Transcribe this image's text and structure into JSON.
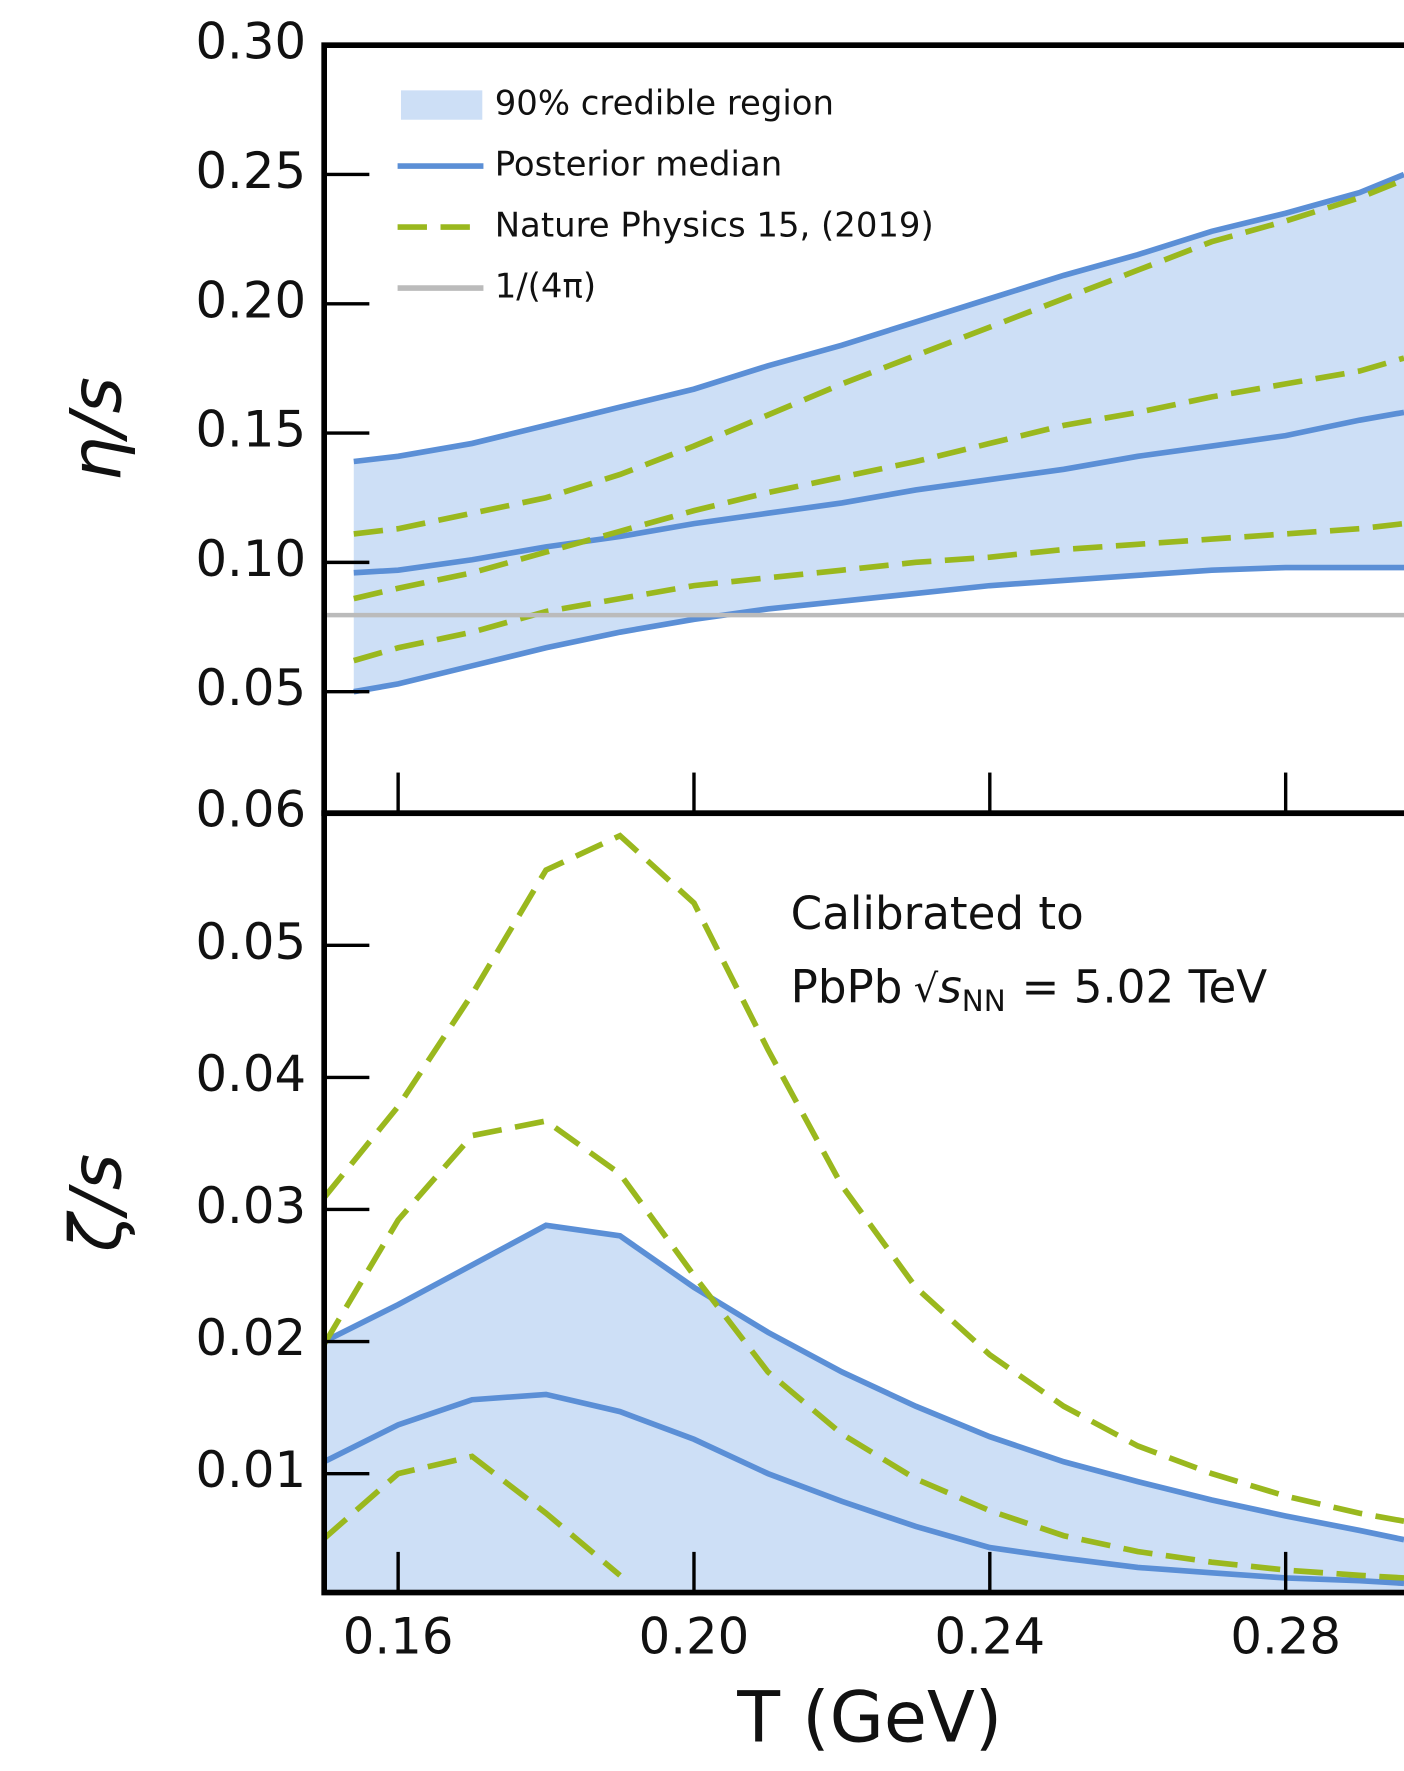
{
  "chart_data": [
    {
      "type": "line",
      "ylabel": "η/s",
      "x": [
        0.154,
        0.16,
        0.17,
        0.18,
        0.19,
        0.2,
        0.21,
        0.22,
        0.23,
        0.24,
        0.25,
        0.26,
        0.27,
        0.28,
        0.29,
        0.296
      ],
      "xlim": [
        0.15,
        0.296
      ],
      "ylim": [
        0.003,
        0.3
      ],
      "xticks": [
        0.16,
        0.2,
        0.24,
        0.28
      ],
      "xtick_labels": false,
      "yticks": [
        {
          "value": 0.3,
          "label": "0.30"
        },
        0.25,
        {
          "value": 0.2,
          "label": "0.20"
        },
        0.15,
        {
          "value": 0.1,
          "label": "0.10"
        },
        0.05
      ],
      "legend": "upper left",
      "series": [
        {
          "name": "90% credible region",
          "color": "#cddff6",
          "edge_color": "#5b8fd6",
          "lower": [
            0.05,
            0.053,
            0.06,
            0.067,
            0.073,
            0.078,
            0.082,
            0.085,
            0.088,
            0.091,
            0.093,
            0.095,
            0.097,
            0.098,
            0.098,
            0.098
          ],
          "upper": [
            0.139,
            0.141,
            0.146,
            0.153,
            0.16,
            0.167,
            0.176,
            0.184,
            0.193,
            0.202,
            0.211,
            0.219,
            0.228,
            0.235,
            0.243,
            0.25
          ]
        },
        {
          "name": "Posterior median",
          "color": "#5b8fd6",
          "values": [
            0.096,
            0.097,
            0.101,
            0.106,
            0.11,
            0.115,
            0.119,
            0.123,
            0.128,
            0.132,
            0.136,
            0.141,
            0.145,
            0.149,
            0.155,
            0.158
          ]
        },
        {
          "name": "Nature Physics 15, (2019)",
          "color": "#9ab81e",
          "dashed": true,
          "values": [
            0.086,
            0.09,
            0.096,
            0.104,
            0.112,
            0.12,
            0.127,
            0.133,
            0.139,
            0.146,
            0.153,
            0.158,
            0.164,
            0.169,
            0.174,
            0.179
          ],
          "lower": [
            0.062,
            0.067,
            0.073,
            0.081,
            0.086,
            0.091,
            0.094,
            0.097,
            0.1,
            0.102,
            0.105,
            0.107,
            0.109,
            0.111,
            0.113,
            0.115
          ],
          "upper": [
            0.111,
            0.113,
            0.119,
            0.125,
            0.134,
            0.145,
            0.157,
            0.169,
            0.18,
            0.191,
            0.202,
            0.213,
            0.224,
            0.232,
            0.241,
            0.248
          ]
        },
        {
          "name": "1/(4π)",
          "color": "#bbbbbb",
          "hline": 0.0796
        }
      ]
    },
    {
      "type": "line",
      "ylabel": "ζ/s",
      "xlabel": "T (GeV)",
      "annotation": [
        "Calibrated to",
        "PbPb",
        "√",
        "s",
        "NN",
        "= 5.02 TeV"
      ],
      "x": [
        0.15,
        0.16,
        0.17,
        0.18,
        0.19,
        0.2,
        0.21,
        0.22,
        0.23,
        0.24,
        0.25,
        0.26,
        0.27,
        0.28,
        0.29,
        0.296
      ],
      "xlim": [
        0.15,
        0.296
      ],
      "ylim": [
        0.001,
        0.06
      ],
      "xticks": [
        0.16,
        {
          "value": 0.2,
          "label": "0.20"
        },
        0.24,
        0.28
      ],
      "xtick_labels": true,
      "yticks": [
        0.06,
        0.05,
        0.04,
        0.03,
        0.02,
        0.01
      ],
      "series": [
        {
          "color": "#cddff6",
          "edge_color": "#5b8fd6",
          "lower": [
            0,
            0,
            0,
            0,
            0,
            0,
            0,
            0,
            0,
            0,
            0,
            0,
            0,
            0,
            0,
            0
          ],
          "upper": [
            0.02,
            0.0228,
            0.0258,
            0.0288,
            0.028,
            0.0241,
            0.0207,
            0.0177,
            0.0151,
            0.0128,
            0.0109,
            0.0094,
            0.008,
            0.0068,
            0.0057,
            0.005
          ]
        },
        {
          "color": "#5b8fd6",
          "values": [
            0.0109,
            0.0137,
            0.0156,
            0.016,
            0.0147,
            0.0126,
            0.01,
            0.0079,
            0.006,
            0.0044,
            0.0036,
            0.0029,
            0.0025,
            0.0021,
            0.0019,
            0.0017
          ]
        },
        {
          "color": "#9ab81e",
          "dashed": true,
          "values": [
            0.0198,
            0.0292,
            0.0356,
            0.0367,
            0.0327,
            0.025,
            0.0177,
            0.013,
            0.0096,
            0.0072,
            0.0053,
            0.0041,
            0.0033,
            0.0027,
            0.0023,
            0.0021
          ],
          "lower": [
            0.0051,
            0.01,
            0.0113,
            0.007,
            0.0023,
            null,
            null,
            null,
            null,
            null,
            null,
            null,
            null,
            null,
            null,
            null
          ],
          "upper": [
            0.0309,
            0.0378,
            0.0463,
            0.0557,
            0.0583,
            0.0532,
            0.0421,
            0.0318,
            0.0241,
            0.019,
            0.0151,
            0.0121,
            0.01,
            0.0083,
            0.007,
            0.0064
          ]
        }
      ]
    }
  ]
}
